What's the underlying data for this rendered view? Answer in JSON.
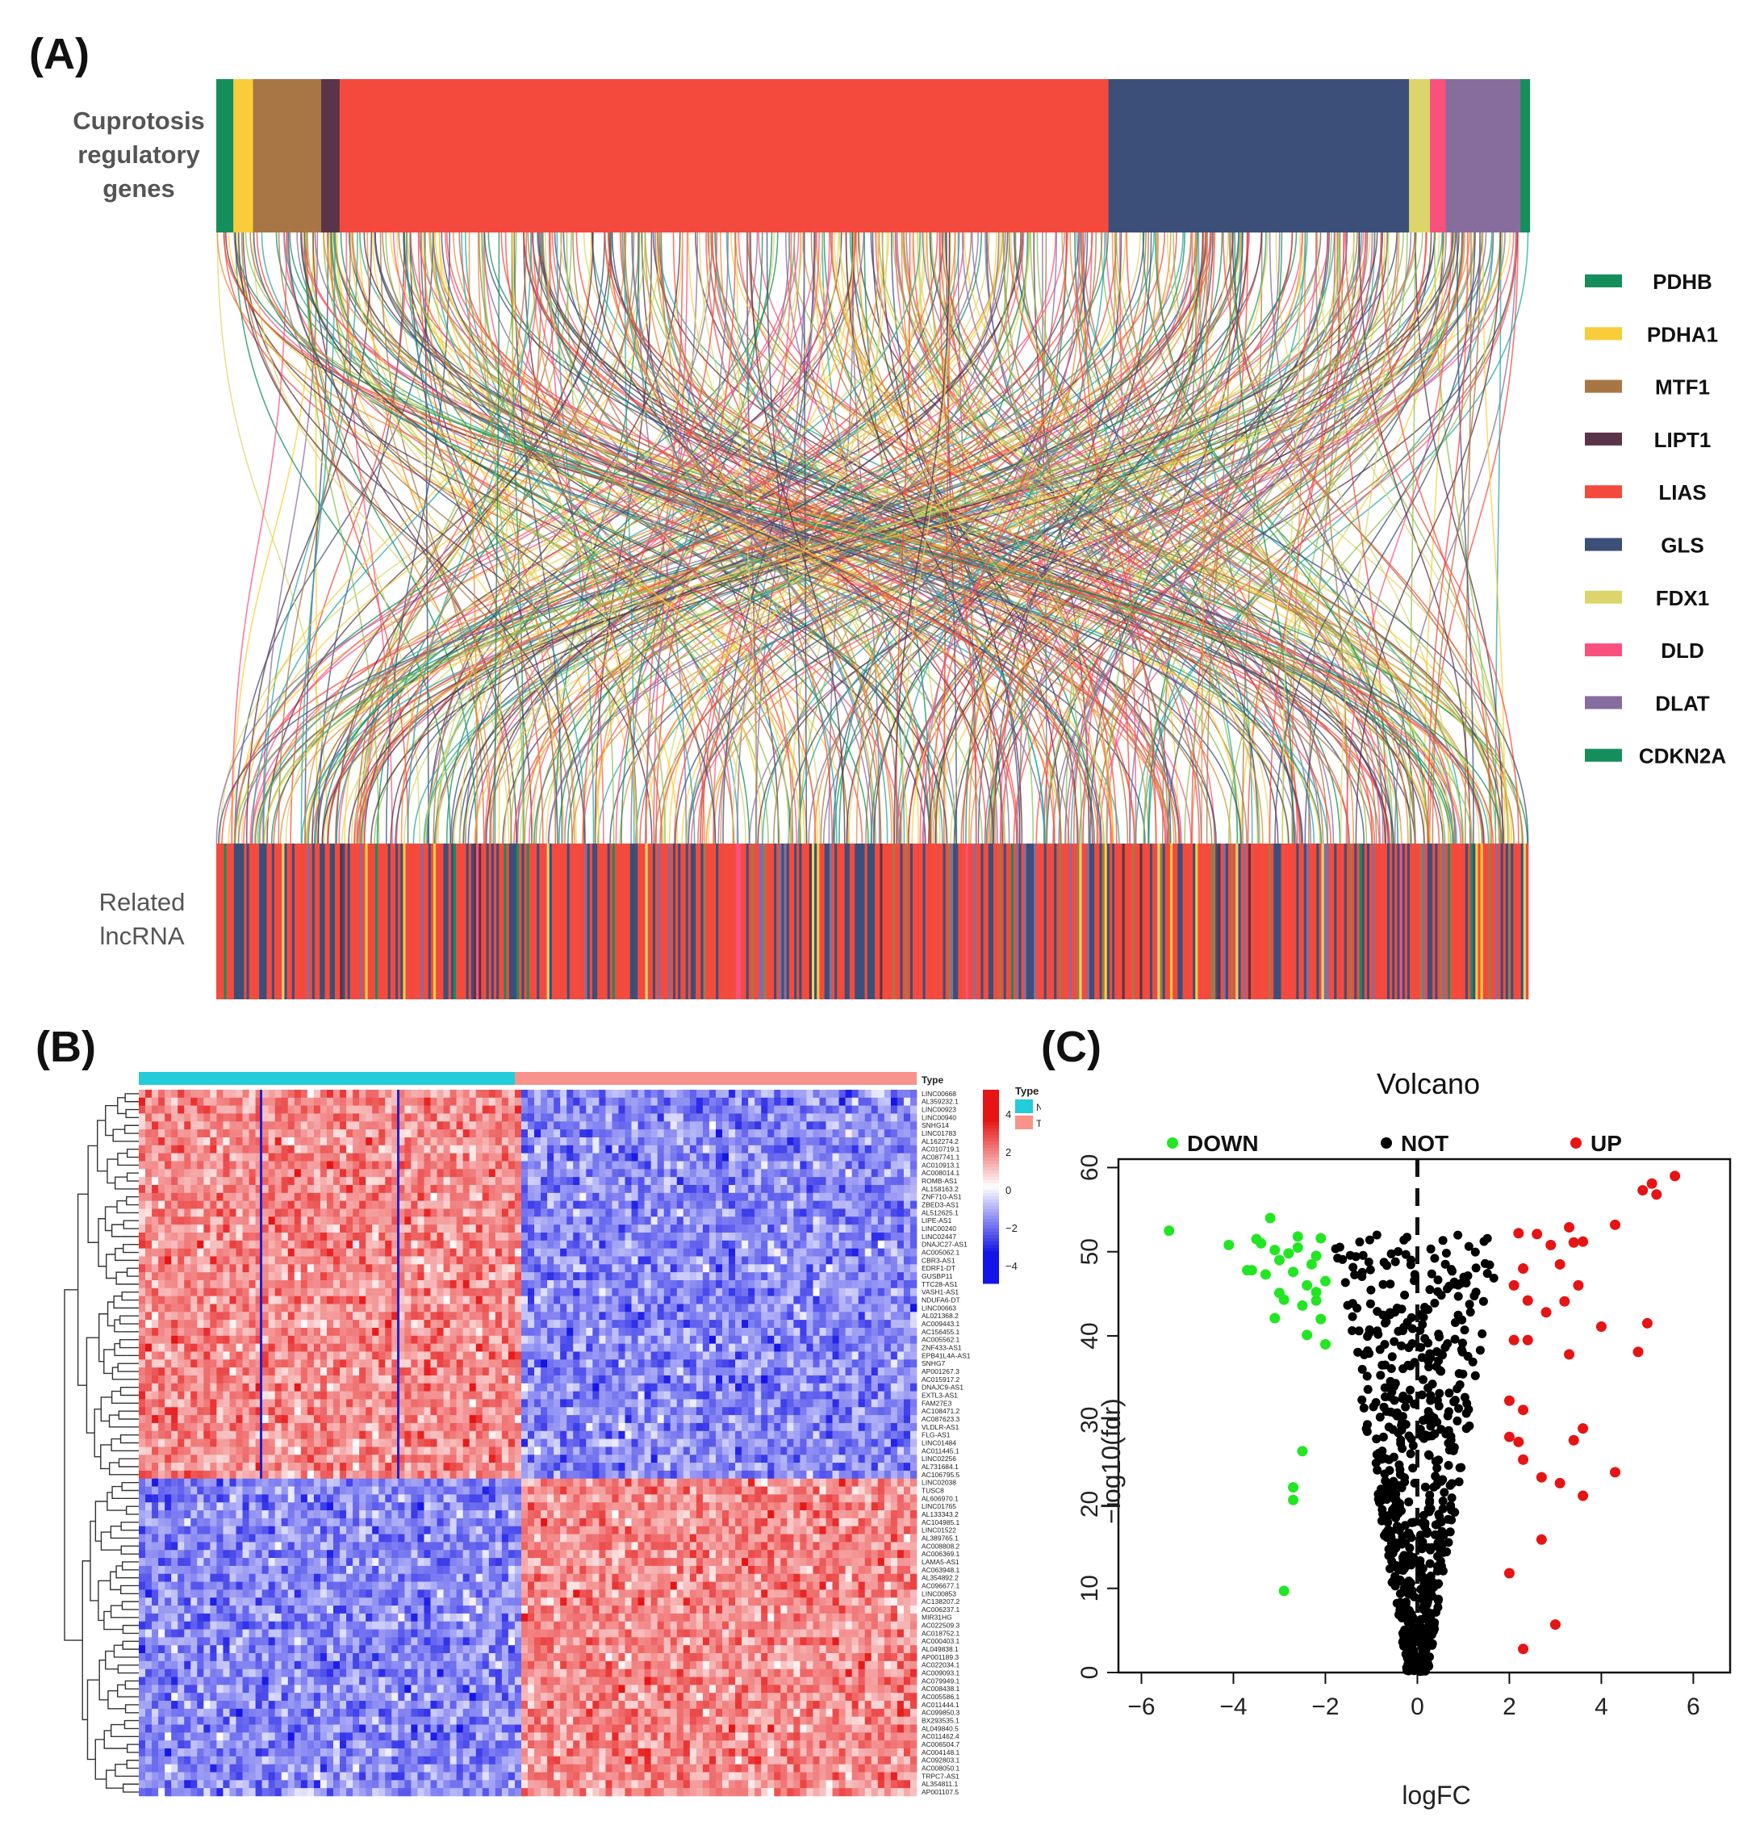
{
  "panels": {
    "a_label": "(A)",
    "b_label": "(B)",
    "c_label": "(C)"
  },
  "chart_data": [
    {
      "type": "sankey",
      "panel": "A",
      "top_label_lines": [
        "Cuprotosis",
        "regulatory",
        "genes"
      ],
      "bottom_label_lines": [
        "Related",
        "lncRNA"
      ],
      "top_segments_order": [
        "CDKN2A",
        "PDHA1",
        "MTF1",
        "LIPT1",
        "LIAS",
        "GLS",
        "FDX1",
        "DLD",
        "DLAT",
        "PDHB"
      ],
      "top_segment_share": [
        0.013,
        0.015,
        0.052,
        0.014,
        0.586,
        0.229,
        0.016,
        0.012,
        0.057,
        0.007
      ],
      "legend": [
        {
          "name": "PDHB",
          "color": "#148F5C"
        },
        {
          "name": "PDHA1",
          "color": "#F9CD3A"
        },
        {
          "name": "MTF1",
          "color": "#A87645"
        },
        {
          "name": "LIPT1",
          "color": "#5A3448"
        },
        {
          "name": "LIAS",
          "color": "#F44A3E"
        },
        {
          "name": "GLS",
          "color": "#3C4F79"
        },
        {
          "name": "FDX1",
          "color": "#DCD56C"
        },
        {
          "name": "DLD",
          "color": "#F9507E"
        },
        {
          "name": "DLAT",
          "color": "#876D9E"
        },
        {
          "name": "CDKN2A",
          "color": "#148F5C"
        }
      ]
    },
    {
      "type": "heatmap",
      "panel": "B",
      "groups": [
        {
          "name": "Normal",
          "color": "#22CCD8"
        },
        {
          "name": "Tumor",
          "color": "#F7938A"
        }
      ],
      "annotation_label": "Type",
      "legend_title": "Type",
      "color_scale": {
        "ticks": [
          "4",
          "2",
          "0",
          "−2",
          "−4"
        ],
        "low": "#1414E6",
        "mid": "#FFFFFF",
        "high": "#E61414"
      },
      "row_labels": [
        "LINC00668",
        "AL359232.1",
        "LINC00923",
        "LINC00940",
        "SNHG14",
        "LINC01783",
        "AL162274.2",
        "AC010719.1",
        "AC087741.1",
        "AC010913.1",
        "AC008014.1",
        "ROMB-AS1",
        "AL158163.2",
        "ZNF710-AS1",
        "ZBED3-AS1",
        "AL512625.1",
        "LIPE-AS1",
        "LINC00240",
        "LINC02447",
        "DNAJC27-AS1",
        "AC005062.1",
        "CBR3-AS1",
        "EDRF1-DT",
        "GUSBP11",
        "TTC28-AS1",
        "VASH1-AS1",
        "NDUFA6-DT",
        "LINC00663",
        "AL021368.2",
        "AC009443.1",
        "AC156455.1",
        "AC005562.1",
        "ZNF433-AS1",
        "EPB41L4A-AS1",
        "SNHG7",
        "AP001267.3",
        "AC015917.2",
        "DNAJC9-AS1",
        "EXTL3-AS1",
        "FAM27E3",
        "AC108471.2",
        "AC087623.3",
        "VLDLR-AS1",
        "FLG-AS1",
        "LINC01484",
        "AC011445.1",
        "LINC02256",
        "AL731684.1",
        "AC106795.5",
        "LINC02038",
        "TUSC8",
        "AL606970.1",
        "LINC01765",
        "AL133343.2",
        "AC104985.1",
        "LINC01522",
        "AL389765.1",
        "AC008808.2",
        "AC006369.1",
        "LAMA5-AS1",
        "AC063948.1",
        "AL354892.2",
        "AC096677.1",
        "LINC00853",
        "AC138207.2",
        "AC006237.1",
        "MIR31HG",
        "AC022509.3",
        "AC018752.1",
        "AC000403.1",
        "AL049838.1",
        "AP001189.3",
        "AC022034.1",
        "AC009093.1",
        "AC079949.1",
        "AC008438.1",
        "AC005586.1",
        "AC011444.1",
        "AC099850.3",
        "BX293535.1",
        "AL049840.5",
        "AC011462.4",
        "AC006504.7",
        "AC004148.1",
        "AC092803.1",
        "AC008050.1",
        "TRPC7-AS1",
        "AL354811.1",
        "AP001107.5"
      ],
      "up_in_normal_rows": 49
    },
    {
      "type": "scatter",
      "panel": "C",
      "title": "Volcano",
      "xlabel": "logFC",
      "ylabel": "−log10(fdr)",
      "xlim": [
        -6.5,
        6.8
      ],
      "ylim": [
        0,
        61
      ],
      "xticks": [
        "−6",
        "−4",
        "−2",
        "0",
        "2",
        "4",
        "6"
      ],
      "xtick_values": [
        -6,
        -4,
        -2,
        0,
        2,
        4,
        6
      ],
      "yticks": [
        "0",
        "10",
        "20",
        "30",
        "40",
        "50",
        "60"
      ],
      "ytick_values": [
        0,
        10,
        20,
        30,
        40,
        50,
        60
      ],
      "legend": [
        {
          "name": "DOWN",
          "color": "#22E622"
        },
        {
          "name": "NOT",
          "color": "#000000"
        },
        {
          "name": "UP",
          "color": "#E61414"
        }
      ],
      "up_points": [
        [
          5.6,
          59
        ],
        [
          5.1,
          58.1
        ],
        [
          4.9,
          57.3
        ],
        [
          5.2,
          56.8
        ],
        [
          4.3,
          53.2
        ],
        [
          3.3,
          52.9
        ],
        [
          3.6,
          51.2
        ],
        [
          2.6,
          52.1
        ],
        [
          2.2,
          52.2
        ],
        [
          2.9,
          50.8
        ],
        [
          3.4,
          51.1
        ],
        [
          2.3,
          48
        ],
        [
          2.1,
          46
        ],
        [
          3.5,
          46
        ],
        [
          3.1,
          48.5
        ],
        [
          2.4,
          44.2
        ],
        [
          3.2,
          44.1
        ],
        [
          2.8,
          42.8
        ],
        [
          4.0,
          41.1
        ],
        [
          5.0,
          41.5
        ],
        [
          2.1,
          39.5
        ],
        [
          2.4,
          39.5
        ],
        [
          3.3,
          37.8
        ],
        [
          4.8,
          38.1
        ],
        [
          2.0,
          32.3
        ],
        [
          2.3,
          31.2
        ],
        [
          3.6,
          29
        ],
        [
          3.4,
          27.6
        ],
        [
          2.0,
          28
        ],
        [
          2.2,
          27.4
        ],
        [
          2.3,
          25.3
        ],
        [
          4.3,
          23.8
        ],
        [
          2.7,
          23.2
        ],
        [
          3.1,
          22.5
        ],
        [
          3.6,
          21
        ],
        [
          2.7,
          15.8
        ],
        [
          2.0,
          11.8
        ],
        [
          3.0,
          5.7
        ],
        [
          2.3,
          2.8
        ]
      ],
      "down_points": [
        [
          -5.4,
          52.5
        ],
        [
          -3.2,
          54
        ],
        [
          -4.1,
          50.8
        ],
        [
          -2.1,
          51.6
        ],
        [
          -2.6,
          51.8
        ],
        [
          -3.4,
          51
        ],
        [
          -3.1,
          50.2
        ],
        [
          -2.8,
          49.8
        ],
        [
          -2.2,
          49.5
        ],
        [
          -3.7,
          47.8
        ],
        [
          -3.3,
          47.3
        ],
        [
          -2.7,
          47.6
        ],
        [
          -2.3,
          48.5
        ],
        [
          -2.0,
          46.5
        ],
        [
          -3.0,
          45.1
        ],
        [
          -2.2,
          45.2
        ],
        [
          -2.5,
          43.6
        ],
        [
          -3.1,
          42.1
        ],
        [
          -2.4,
          40.1
        ],
        [
          -2.0,
          39
        ],
        [
          -2.2,
          44.2
        ],
        [
          -2.9,
          44.3
        ],
        [
          -3.6,
          47.8
        ],
        [
          -2.5,
          26.3
        ],
        [
          -2.7,
          22
        ],
        [
          -2.7,
          20.5
        ],
        [
          -2.9,
          9.7
        ],
        [
          -2.6,
          50.5
        ],
        [
          -3.0,
          49
        ],
        [
          -2.4,
          46
        ],
        [
          -2.1,
          42
        ],
        [
          -3.5,
          51.5
        ]
      ],
      "not_region": "dense cloud of non-significant genes with |logFC| < 2"
    }
  ]
}
